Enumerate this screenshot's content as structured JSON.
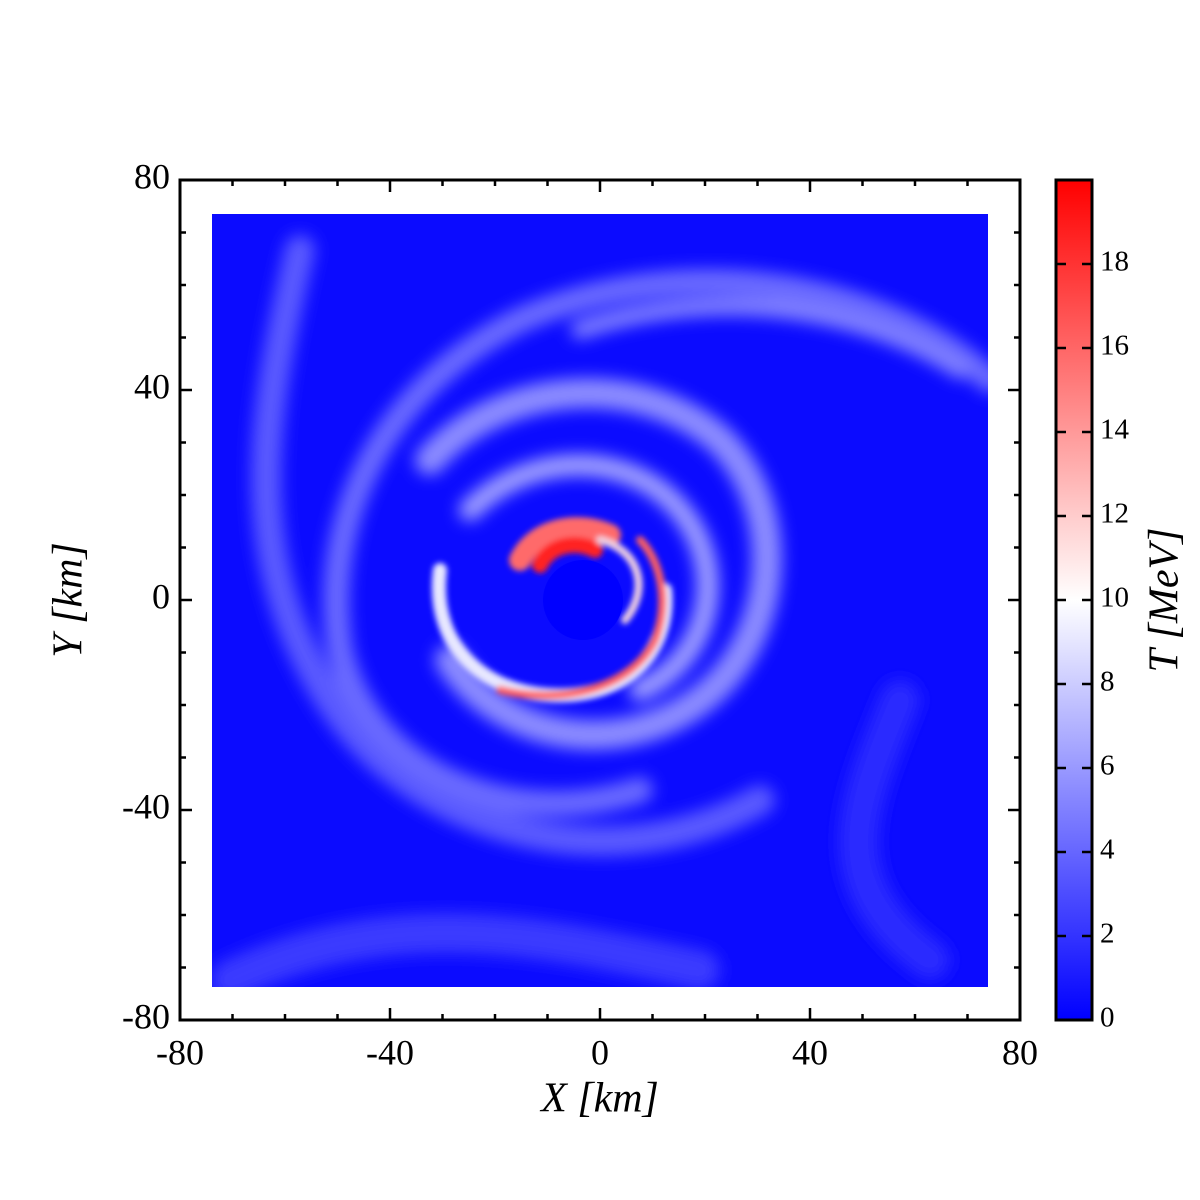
{
  "chart_data": {
    "type": "heatmap",
    "x_label": "X [km]",
    "y_label": "Y [km]",
    "xlim": [
      -80,
      80
    ],
    "ylim": [
      -80,
      80
    ],
    "xticks": [
      -80,
      -40,
      0,
      40,
      80
    ],
    "yticks": [
      -80,
      -40,
      0,
      40,
      80
    ],
    "colorbar_label": "T [MeV]",
    "clim": [
      0,
      20
    ],
    "cticks": [
      0,
      2,
      4,
      6,
      8,
      10,
      12,
      14,
      16,
      18
    ],
    "colormap": [
      "#0000ff",
      "#ffffff",
      "#ff0000"
    ]
  }
}
